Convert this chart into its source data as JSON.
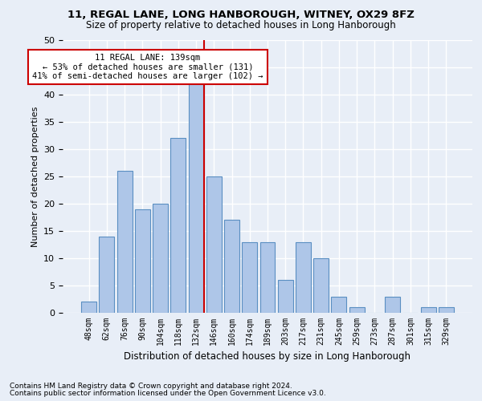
{
  "title1": "11, REGAL LANE, LONG HANBOROUGH, WITNEY, OX29 8FZ",
  "title2": "Size of property relative to detached houses in Long Hanborough",
  "xlabel": "Distribution of detached houses by size in Long Hanborough",
  "ylabel": "Number of detached properties",
  "footnote1": "Contains HM Land Registry data © Crown copyright and database right 2024.",
  "footnote2": "Contains public sector information licensed under the Open Government Licence v3.0.",
  "bar_labels": [
    "48sqm",
    "62sqm",
    "76sqm",
    "90sqm",
    "104sqm",
    "118sqm",
    "132sqm",
    "146sqm",
    "160sqm",
    "174sqm",
    "189sqm",
    "203sqm",
    "217sqm",
    "231sqm",
    "245sqm",
    "259sqm",
    "273sqm",
    "287sqm",
    "301sqm",
    "315sqm",
    "329sqm"
  ],
  "bar_values": [
    2,
    14,
    26,
    19,
    20,
    32,
    42,
    25,
    17,
    13,
    13,
    6,
    13,
    10,
    3,
    1,
    0,
    3,
    0,
    1,
    1
  ],
  "bar_color": "#aec6e8",
  "bar_edge_color": "#5a8fc2",
  "background_color": "#e8eef7",
  "grid_color": "#ffffff",
  "red_line_index": 6,
  "red_line_color": "#cc0000",
  "annotation_text": "11 REGAL LANE: 139sqm\n← 53% of detached houses are smaller (131)\n41% of semi-detached houses are larger (102) →",
  "annotation_box_color": "#ffffff",
  "annotation_box_edge_color": "#cc0000",
  "ylim": [
    0,
    50
  ],
  "yticks": [
    0,
    5,
    10,
    15,
    20,
    25,
    30,
    35,
    40,
    45,
    50
  ]
}
